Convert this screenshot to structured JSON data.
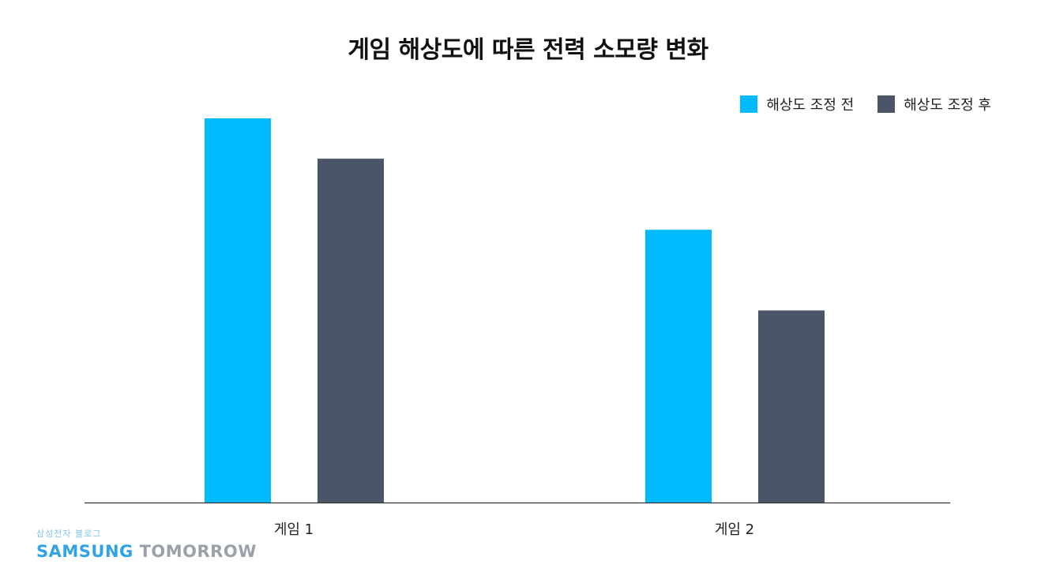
{
  "chart_data": {
    "type": "bar",
    "title": "게임 해상도에 따른 전력 소모량 변화",
    "categories": [
      "게임 1",
      "게임 2"
    ],
    "series": [
      {
        "name": "해상도 조정 전",
        "color": "#00bbff",
        "values": [
          100,
          71
        ]
      },
      {
        "name": "해상도 조정 후",
        "color": "#4b5568",
        "values": [
          89.5,
          50
        ]
      }
    ],
    "xlabel": "",
    "ylabel": "",
    "ylim": [
      0,
      100
    ],
    "grid": false,
    "legend_position": "top-right"
  },
  "logo": {
    "korean": "삼성전자 블로그",
    "brand_primary": "SAMSUNG",
    "brand_secondary": "TOMORROW"
  }
}
